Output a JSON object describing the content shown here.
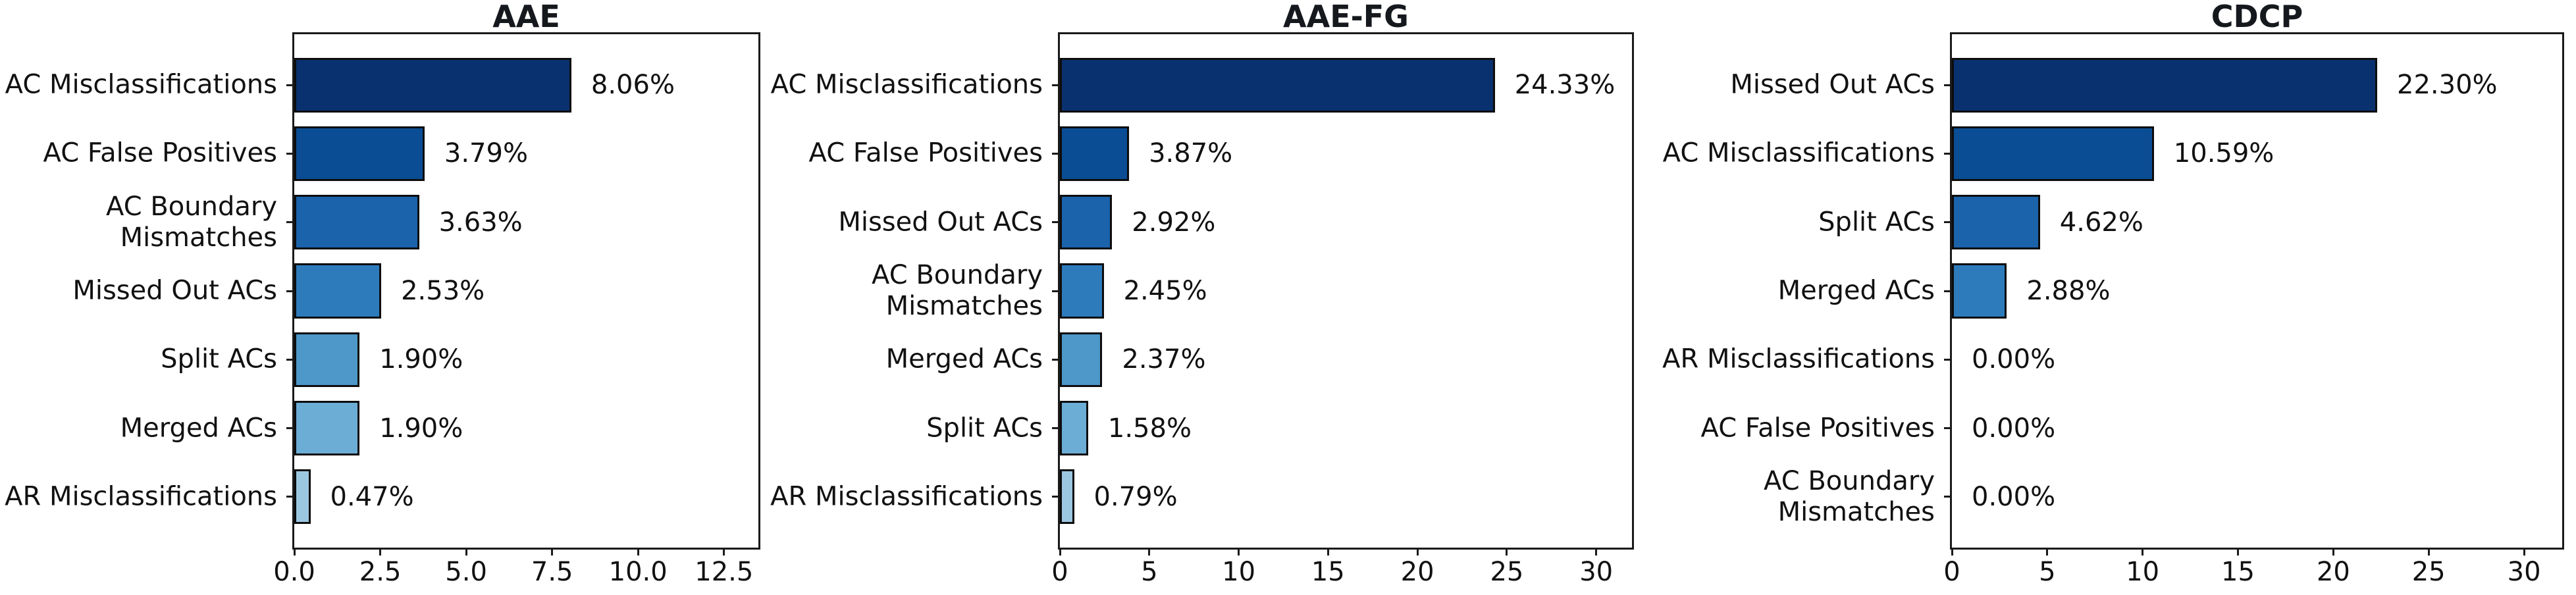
{
  "figure": {
    "background": "#ffffff",
    "text_color": "#111111",
    "title_color": "#15181d",
    "spine_color": "#1a1a1a",
    "bar_edge_color": "#0d0d0d",
    "palette": [
      "#0a316f",
      "#0b4d94",
      "#1b63ab",
      "#2e7bbc",
      "#4d97c9",
      "#6cadd6",
      "#9cc7e1"
    ]
  },
  "chart_data": [
    {
      "type": "bar",
      "orientation": "horizontal",
      "title": "AAE",
      "categories": [
        "AC Misclassifications",
        "AC False Positives",
        "AC Boundary\nMismatches",
        "Missed Out ACs",
        "Split ACs",
        "Merged ACs",
        "AR Misclassifications"
      ],
      "values": [
        8.06,
        3.79,
        3.63,
        2.53,
        1.9,
        1.9,
        0.47
      ],
      "value_labels": [
        "8.06%",
        "3.79%",
        "3.63%",
        "2.53%",
        "1.90%",
        "1.90%",
        "0.47%"
      ],
      "xlim": [
        0,
        13.5
      ],
      "xticks": [
        0,
        2.5,
        5,
        7.5,
        10,
        12.5
      ],
      "xtick_labels": [
        "0.0",
        "2.5",
        "5.0",
        "7.5",
        "10.0",
        "12.5"
      ],
      "grid": false,
      "legend": null
    },
    {
      "type": "bar",
      "orientation": "horizontal",
      "title": "AAE-FG",
      "categories": [
        "AC Misclassifications",
        "AC False Positives",
        "Missed Out ACs",
        "AC Boundary\nMismatches",
        "Merged ACs",
        "Split ACs",
        "AR Misclassifications"
      ],
      "values": [
        24.33,
        3.87,
        2.92,
        2.45,
        2.37,
        1.58,
        0.79
      ],
      "value_labels": [
        "24.33%",
        "3.87%",
        "2.92%",
        "2.45%",
        "2.37%",
        "1.58%",
        "0.79%"
      ],
      "xlim": [
        0,
        32
      ],
      "xticks": [
        0,
        5,
        10,
        15,
        20,
        25,
        30
      ],
      "xtick_labels": [
        "0",
        "5",
        "10",
        "15",
        "20",
        "25",
        "30"
      ],
      "grid": false,
      "legend": null
    },
    {
      "type": "bar",
      "orientation": "horizontal",
      "title": "CDCP",
      "categories": [
        "Missed Out ACs",
        "AC Misclassifications",
        "Split ACs",
        "Merged ACs",
        "AR Misclassifications",
        "AC False Positives",
        "AC Boundary\nMismatches"
      ],
      "values": [
        22.3,
        10.59,
        4.62,
        2.88,
        0.0,
        0.0,
        0.0
      ],
      "value_labels": [
        "22.30%",
        "10.59%",
        "4.62%",
        "2.88%",
        "0.00%",
        "0.00%",
        "0.00%"
      ],
      "xlim": [
        0,
        32
      ],
      "xticks": [
        0,
        5,
        10,
        15,
        20,
        25,
        30
      ],
      "xtick_labels": [
        "0",
        "5",
        "10",
        "15",
        "20",
        "25",
        "30"
      ],
      "grid": false,
      "legend": null
    }
  ]
}
